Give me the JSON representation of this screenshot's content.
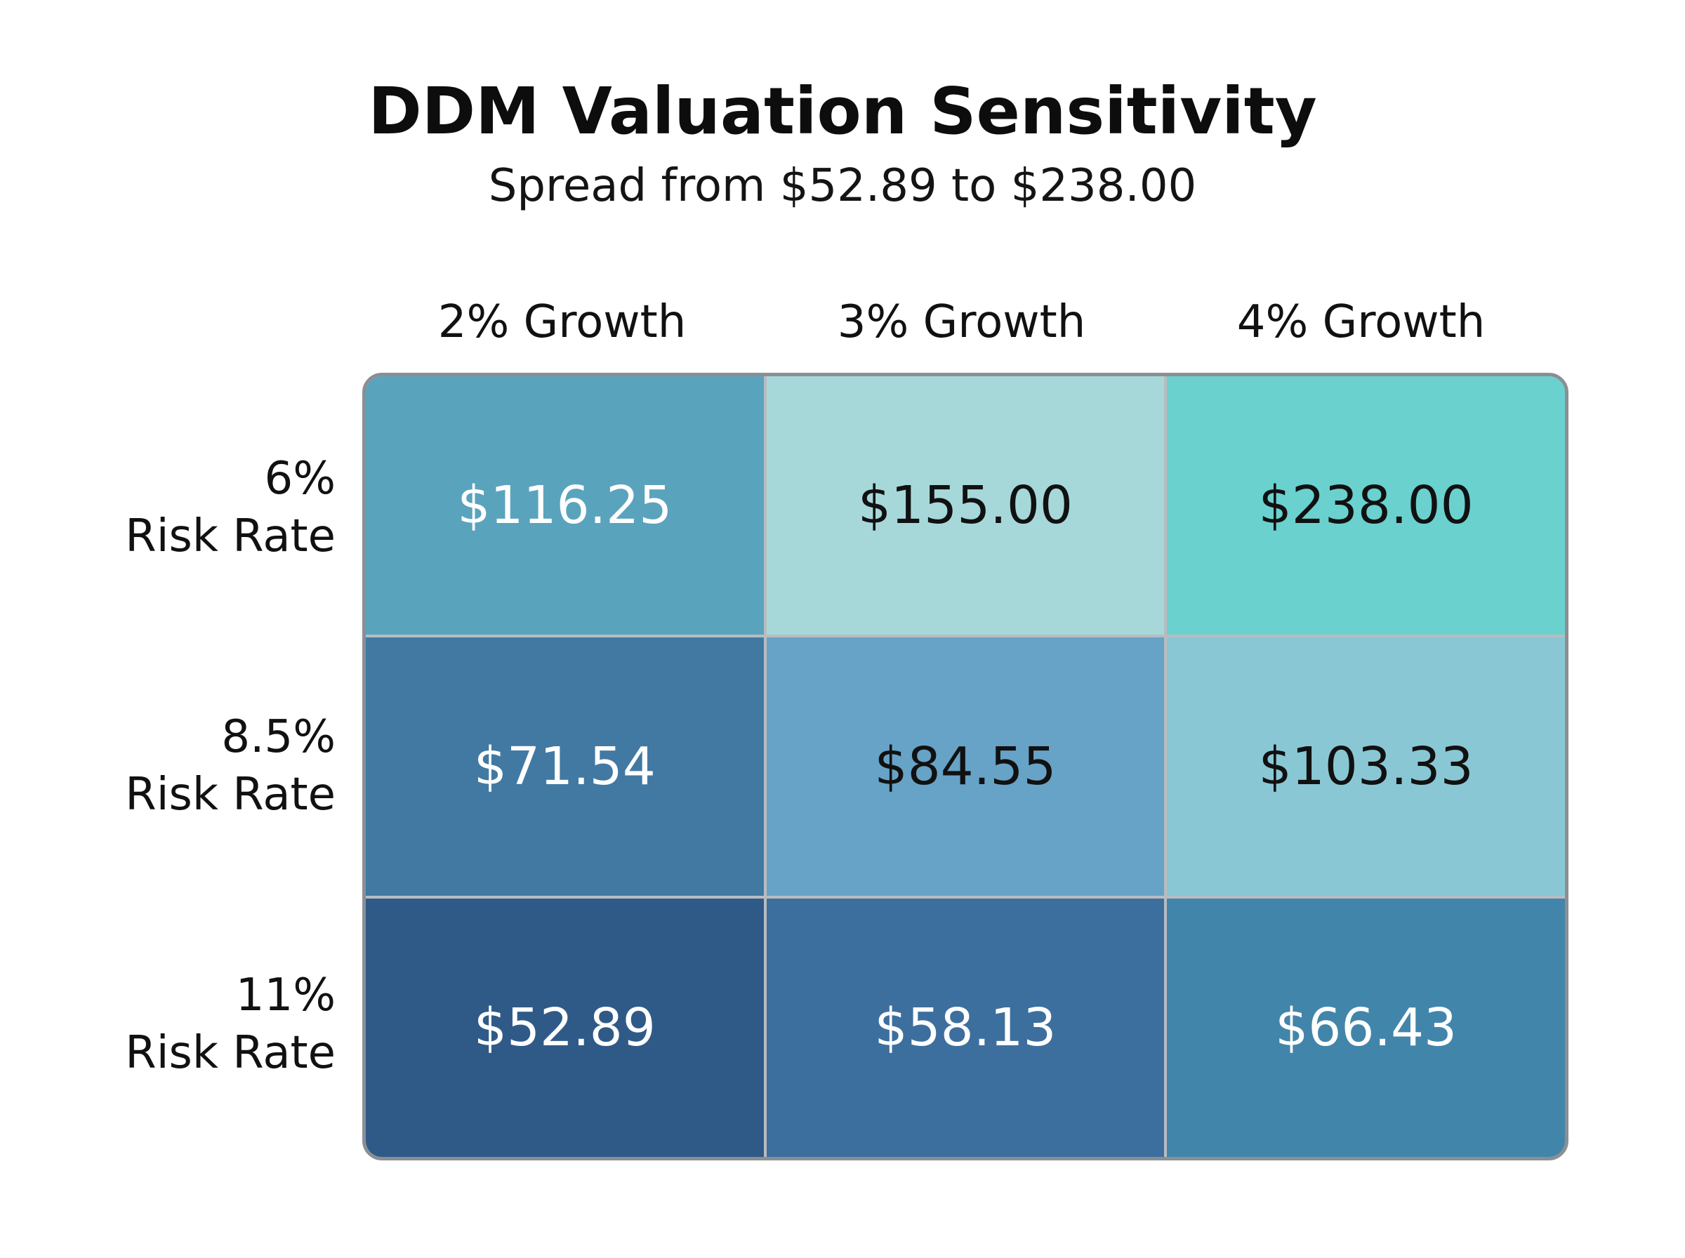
{
  "chart_data": {
    "type": "heatmap",
    "title": "DDM Valuation Sensitivity",
    "subtitle": "Spread from $52.89 to $238.00",
    "columns": [
      "2% Growth",
      "3% Growth",
      "4% Growth"
    ],
    "rows": [
      [
        "6%",
        "Risk Rate"
      ],
      [
        "8.5%",
        "Risk Rate"
      ],
      [
        "11%",
        "Risk Rate"
      ]
    ],
    "values": [
      [
        116.25,
        155.0,
        238.0
      ],
      [
        71.54,
        84.55,
        103.33
      ],
      [
        52.89,
        58.13,
        66.43
      ]
    ],
    "labels": [
      [
        "$116.25",
        "$155.00",
        "$238.00"
      ],
      [
        "$71.54",
        "$84.55",
        "$103.33"
      ],
      [
        "$52.89",
        "$58.13",
        "$66.43"
      ]
    ],
    "cell_colors": [
      [
        "#5aa3bd",
        "#a6d8da",
        "#6ad1cf"
      ],
      [
        "#4279a3",
        "#66a3c6",
        "#8ac7d5"
      ],
      [
        "#2f5a88",
        "#3d6f9e",
        "#4285aa"
      ]
    ],
    "text_colors": [
      [
        "#ffffff",
        "#111111",
        "#111111"
      ],
      [
        "#ffffff",
        "#111111",
        "#111111"
      ],
      [
        "#ffffff",
        "#ffffff",
        "#ffffff"
      ]
    ]
  }
}
